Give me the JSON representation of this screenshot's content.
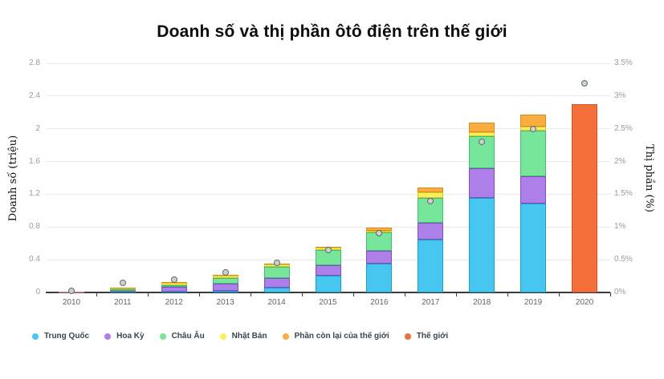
{
  "title": "Doanh số và thị phần ôtô điện trên thế giới",
  "chart_data": {
    "type": "bar",
    "subtype": "stacked-bars-with-share-markers",
    "categories": [
      "2010",
      "2011",
      "2012",
      "2013",
      "2014",
      "2015",
      "2016",
      "2017",
      "2018",
      "2019",
      "2020"
    ],
    "left_axis": {
      "label": "Doanh số (triệu)",
      "tick_labels": [
        "0",
        "0.4",
        "0.8",
        "1.2",
        "1.6",
        "2",
        "2.4",
        "2.8"
      ],
      "min": 0,
      "max": 2.8,
      "grid": true
    },
    "right_axis": {
      "label": "Thị phần (%)",
      "tick_labels": [
        "0%",
        "0.5%",
        "1%",
        "1.5%",
        "2%",
        "2.5%",
        "3%",
        "3.5%"
      ],
      "min": 0,
      "max": 3.5
    },
    "series": [
      {
        "name": "Trung Quốc",
        "color": "#45C7F0",
        "border": "#1D9BC4",
        "values": [
          0.002,
          0.006,
          0.012,
          0.015,
          0.06,
          0.21,
          0.35,
          0.65,
          1.16,
          1.09
        ]
      },
      {
        "name": "Hoa Kỳ",
        "color": "#AC80E8",
        "border": "#7E4FC4",
        "values": [
          0.003,
          0.018,
          0.053,
          0.096,
          0.12,
          0.12,
          0.16,
          0.2,
          0.36,
          0.33
        ]
      },
      {
        "name": "Châu Âu",
        "color": "#78E69A",
        "border": "#3FBF6B",
        "values": [
          0.003,
          0.015,
          0.028,
          0.065,
          0.13,
          0.19,
          0.22,
          0.31,
          0.39,
          0.56
        ]
      },
      {
        "name": "Nhật Bản",
        "color": "#FBEE58",
        "border": "#D8C62E",
        "values": [
          0.003,
          0.013,
          0.025,
          0.029,
          0.03,
          0.025,
          0.025,
          0.06,
          0.05,
          0.05
        ]
      },
      {
        "name": "Phần còn lại của thế giới",
        "color": "#FBAE40",
        "border": "#DC8A1E",
        "values": [
          0.001,
          0.003,
          0.005,
          0.007,
          0.01,
          0.015,
          0.04,
          0.06,
          0.12,
          0.14
        ]
      }
    ],
    "world_bar": {
      "name": "Thế giới",
      "category": "2020",
      "value": 2.3,
      "color": "#F4703A",
      "border": "#D85526"
    },
    "share_markers": {
      "name": "Thị phần (%)",
      "values": [
        0.03,
        0.15,
        0.2,
        0.3,
        0.45,
        0.65,
        0.9,
        1.4,
        2.3,
        2.5,
        3.2
      ],
      "stroke": "#5E6A66",
      "fill": "#CBD2CE"
    },
    "legend": [
      {
        "label": "Trung Quốc",
        "color": "#45C7F0"
      },
      {
        "label": "Hoa Kỳ",
        "color": "#AC80E8"
      },
      {
        "label": "Châu Âu",
        "color": "#78E69A"
      },
      {
        "label": "Nhật Bản",
        "color": "#FBEE58"
      },
      {
        "label": "Phần còn lại của thế giới",
        "color": "#FBAE40"
      },
      {
        "label": "Thế giới",
        "color": "#F4703A"
      }
    ],
    "colors": {
      "grid": "#ebebeb",
      "axis": "#3a3a3a",
      "tick_text": "#9b9b9b",
      "x_text": "#646464"
    }
  }
}
